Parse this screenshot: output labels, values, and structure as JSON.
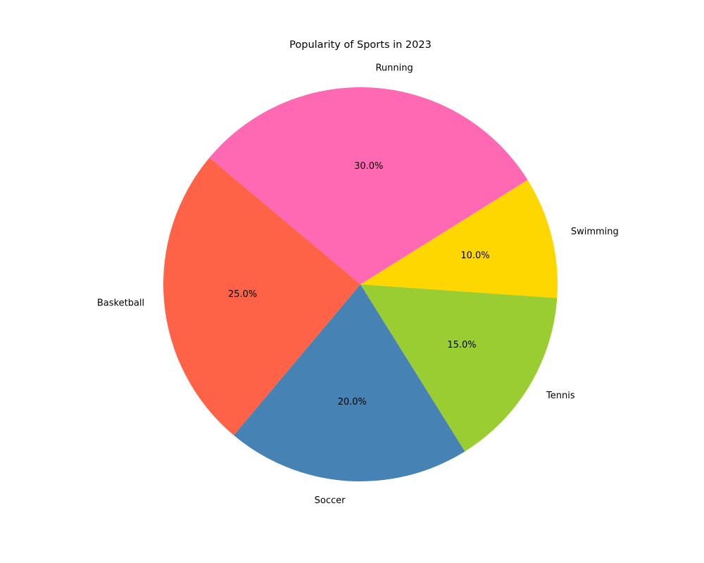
{
  "chart_data": {
    "type": "pie",
    "title": "Popularity of Sports in 2023",
    "categories": [
      "Basketball",
      "Soccer",
      "Tennis",
      "Swimming",
      "Running"
    ],
    "values": [
      25,
      20,
      15,
      10,
      30
    ],
    "value_labels": [
      "25.0%",
      "20.0%",
      "15.0%",
      "10.0%",
      "30.0%"
    ],
    "colors": [
      "#FF6347",
      "#4682B4",
      "#9ACD32",
      "#FFD700",
      "#FF69B4"
    ],
    "start_angle_deg": 140,
    "direction": "counterclockwise",
    "legend": "none"
  }
}
